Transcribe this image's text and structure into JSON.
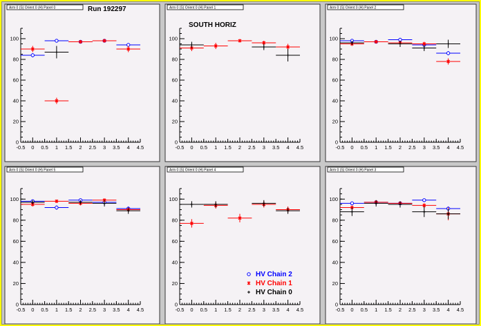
{
  "colors": {
    "chain2": "#0000ff",
    "chain1": "#ff0000",
    "chain0": "#000000"
  },
  "legend": [
    {
      "label": "HV Chain 2",
      "key": "chain2",
      "marker": "circle"
    },
    {
      "label": "HV Chain 1",
      "key": "chain1",
      "marker": "star"
    },
    {
      "label": "HV Chain 0",
      "key": "chain0",
      "marker": "plus"
    }
  ],
  "chart_data": [
    {
      "type": "scatter",
      "title": "Arm 0 (S) Orient 0 (H) Panel 0",
      "annotation": "Run 192297",
      "xlim": [
        -0.5,
        4.5
      ],
      "ylim": [
        0,
        110
      ],
      "xticks": [
        "-0.5",
        "0",
        "0.5",
        "1",
        "1.5",
        "2",
        "2.5",
        "3",
        "3.5",
        "4",
        "4.5"
      ],
      "yticks": [
        "0",
        "20",
        "40",
        "60",
        "80",
        "100"
      ],
      "series": [
        {
          "key": "chain2",
          "x": [
            0,
            1,
            2,
            3,
            4
          ],
          "y": [
            84,
            98,
            97,
            98,
            94
          ],
          "err": [
            2,
            0.5,
            1,
            1,
            1
          ]
        },
        {
          "key": "chain1",
          "x": [
            0,
            1,
            2,
            3,
            4
          ],
          "y": [
            90,
            40,
            97,
            98,
            90
          ],
          "err": [
            3,
            3,
            1,
            1,
            3
          ]
        },
        {
          "key": "chain0",
          "x": [
            1
          ],
          "y": [
            87
          ],
          "err": [
            6
          ]
        }
      ]
    },
    {
      "type": "scatter",
      "title": "Arm 0 (S) Orient 0 (H) Panel 1",
      "annotation": "SOUTH HORIZ",
      "xlim": [
        -0.5,
        4.5
      ],
      "ylim": [
        0,
        110
      ],
      "xticks": [
        "-0.5",
        "0",
        "0.5",
        "1",
        "1.5",
        "2",
        "2.5",
        "3",
        "3.5",
        "4",
        "4.5"
      ],
      "yticks": [
        "0",
        "20",
        "40",
        "60",
        "80",
        "100"
      ],
      "series": [
        {
          "key": "chain1",
          "x": [
            0,
            1,
            2,
            3,
            4
          ],
          "y": [
            91,
            93,
            98,
            96,
            92
          ],
          "err": [
            3,
            3,
            1,
            2,
            3
          ]
        },
        {
          "key": "chain0",
          "x": [
            0,
            3,
            4
          ],
          "y": [
            94,
            92,
            84
          ],
          "err": [
            3,
            3,
            6
          ]
        }
      ]
    },
    {
      "type": "scatter",
      "title": "Arm 0 (S) Orient 0 (H) Panel 2",
      "xlim": [
        -0.5,
        4.5
      ],
      "ylim": [
        0,
        110
      ],
      "xticks": [
        "-0.5",
        "0",
        "0.5",
        "1",
        "1.5",
        "2",
        "2.5",
        "3",
        "3.5",
        "4",
        "4.5"
      ],
      "yticks": [
        "0",
        "20",
        "40",
        "60",
        "80",
        "100"
      ],
      "series": [
        {
          "key": "chain2",
          "x": [
            0,
            1,
            2,
            3,
            4
          ],
          "y": [
            98,
            97,
            99,
            94,
            86
          ],
          "err": [
            1,
            1,
            1,
            1,
            2
          ]
        },
        {
          "key": "chain1",
          "x": [
            0,
            1,
            2,
            3,
            4
          ],
          "y": [
            95,
            97,
            96,
            95,
            78
          ],
          "err": [
            2,
            1,
            1,
            2,
            3
          ]
        },
        {
          "key": "chain0",
          "x": [
            0,
            2,
            3,
            4
          ],
          "y": [
            96,
            95,
            91,
            95
          ],
          "err": [
            2,
            3,
            3,
            4
          ]
        }
      ]
    },
    {
      "type": "scatter",
      "title": "Arm 0 (S) Orient 0 (H) Panel 5",
      "xlim": [
        -0.5,
        4.5
      ],
      "ylim": [
        0,
        110
      ],
      "xticks": [
        "-0.5",
        "0",
        "0.5",
        "1",
        "1.5",
        "2",
        "2.5",
        "3",
        "3.5",
        "4",
        "4.5"
      ],
      "yticks": [
        "0",
        "20",
        "40",
        "60",
        "80",
        "100"
      ],
      "series": [
        {
          "key": "chain2",
          "x": [
            0,
            1,
            2,
            3,
            4
          ],
          "y": [
            98,
            92,
            99,
            97,
            91
          ],
          "err": [
            1,
            2,
            1,
            1,
            2
          ]
        },
        {
          "key": "chain1",
          "x": [
            0,
            1,
            2,
            3,
            4
          ],
          "y": [
            95,
            98,
            96,
            99,
            90
          ],
          "err": [
            2,
            1,
            2,
            1,
            2
          ]
        },
        {
          "key": "chain0",
          "x": [
            0,
            2,
            3,
            4
          ],
          "y": [
            97,
            97,
            96,
            89
          ],
          "err": [
            2,
            2,
            3,
            3
          ]
        }
      ]
    },
    {
      "type": "scatter",
      "title": "Arm 0 (S) Orient 0 (H) Panel 4",
      "xlim": [
        -0.5,
        4.5
      ],
      "ylim": [
        0,
        110
      ],
      "xticks": [
        "-0.5",
        "0",
        "0.5",
        "1",
        "1.5",
        "2",
        "2.5",
        "3",
        "3.5",
        "4",
        "4.5"
      ],
      "yticks": [
        "0",
        "20",
        "40",
        "60",
        "80",
        "100"
      ],
      "series": [
        {
          "key": "chain1",
          "x": [
            0,
            1,
            2,
            3,
            4
          ],
          "y": [
            77,
            94,
            82,
            95,
            90
          ],
          "err": [
            4,
            3,
            4,
            3,
            3
          ]
        },
        {
          "key": "chain0",
          "x": [
            0,
            1,
            3,
            4
          ],
          "y": [
            95,
            95,
            96,
            89
          ],
          "err": [
            3,
            3,
            3,
            3
          ]
        }
      ],
      "show_legend": true
    },
    {
      "type": "scatter",
      "title": "Arm 0 (S) Orient 0 (H) Panel 3",
      "xlim": [
        -0.5,
        4.5
      ],
      "ylim": [
        0,
        110
      ],
      "xticks": [
        "-0.5",
        "0",
        "0.5",
        "1",
        "1.5",
        "2",
        "2.5",
        "3",
        "3.5",
        "4",
        "4.5"
      ],
      "yticks": [
        "0",
        "20",
        "40",
        "60",
        "80",
        "100"
      ],
      "series": [
        {
          "key": "chain2",
          "x": [
            0,
            1,
            2,
            3,
            4
          ],
          "y": [
            96,
            97,
            96,
            99,
            91
          ],
          "err": [
            1,
            1,
            1,
            1,
            2
          ]
        },
        {
          "key": "chain1",
          "x": [
            0,
            1,
            2,
            3,
            4
          ],
          "y": [
            92,
            97,
            96,
            94,
            86
          ],
          "err": [
            2,
            2,
            1,
            2,
            6
          ]
        },
        {
          "key": "chain0",
          "x": [
            0,
            1,
            2,
            3,
            4
          ],
          "y": [
            88,
            96,
            95,
            88,
            86
          ],
          "err": [
            4,
            3,
            3,
            5,
            5
          ]
        }
      ]
    }
  ]
}
